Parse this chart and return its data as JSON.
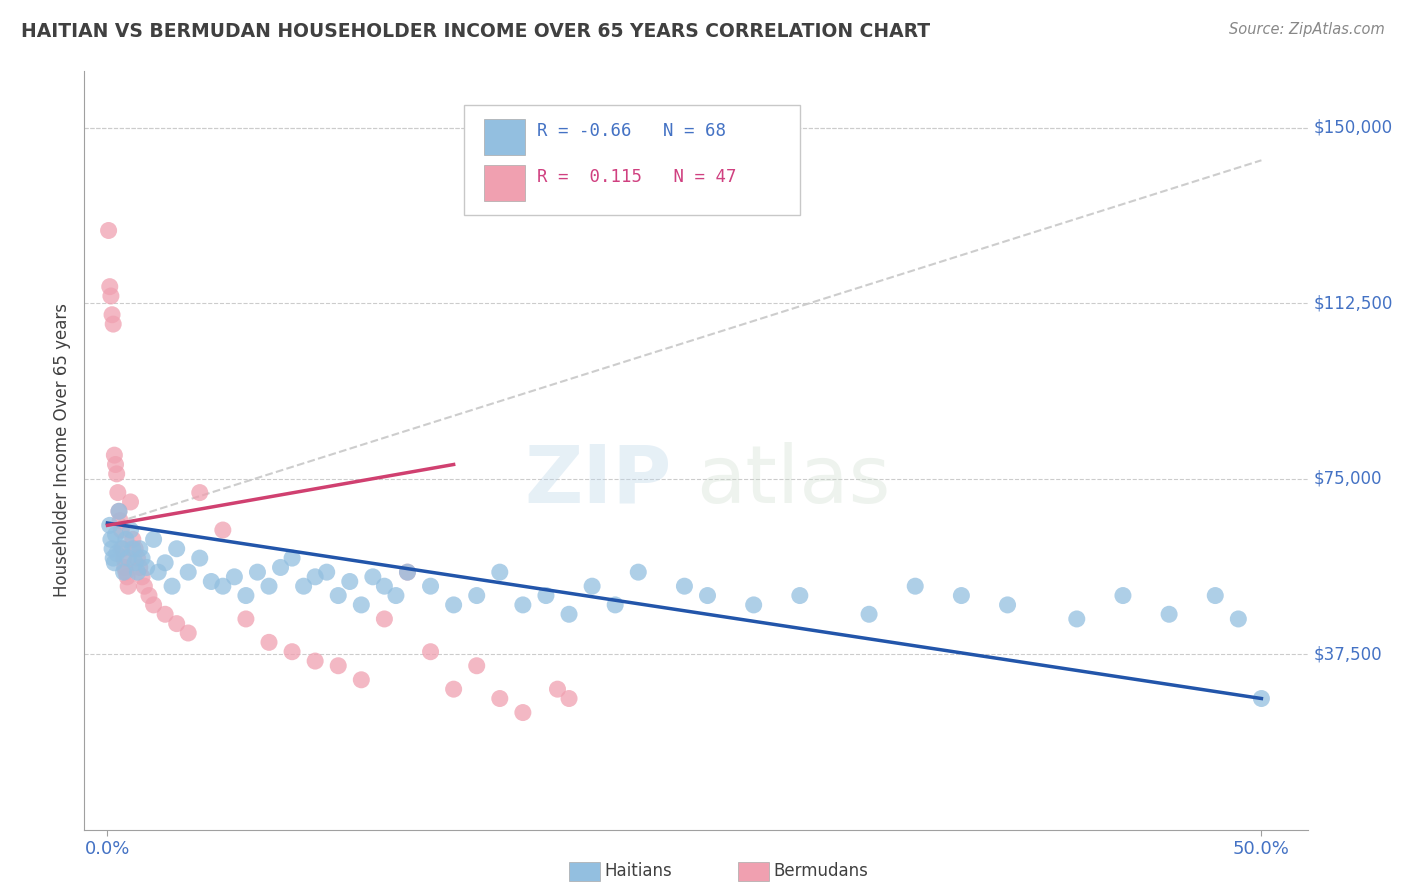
{
  "title": "HAITIAN VS BERMUDAN HOUSEHOLDER INCOME OVER 65 YEARS CORRELATION CHART",
  "source": "Source: ZipAtlas.com",
  "xlabel_ticks": [
    "0.0%",
    "50.0%"
  ],
  "xlabel_tick_vals": [
    0.0,
    50.0
  ],
  "ylabel_ticks": [
    "$37,500",
    "$75,000",
    "$112,500",
    "$150,000"
  ],
  "ylabel_tick_vals": [
    37500,
    75000,
    112500,
    150000
  ],
  "ylim": [
    0,
    162000
  ],
  "xlim": [
    -1.0,
    52
  ],
  "haitian_R": -0.66,
  "haitian_N": 68,
  "bermudan_R": 0.115,
  "bermudan_N": 47,
  "blue_color": "#93bfe0",
  "pink_color": "#f0a0b0",
  "blue_line_color": "#2255aa",
  "pink_line_color": "#d04070",
  "gray_dash_color": "#c8c8c8",
  "title_color": "#404040",
  "axis_label_color": "#4472c4",
  "ylabel_label": "Householder Income Over 65 years",
  "legend_blue_label": "Haitians",
  "legend_pink_label": "Bermudans",
  "watermark_zip": "ZIP",
  "watermark_atlas": "atlas",
  "haitian_x": [
    0.1,
    0.15,
    0.2,
    0.25,
    0.3,
    0.35,
    0.4,
    0.5,
    0.6,
    0.7,
    0.8,
    0.9,
    1.0,
    1.1,
    1.2,
    1.3,
    1.4,
    1.5,
    1.7,
    2.0,
    2.2,
    2.5,
    2.8,
    3.0,
    3.5,
    4.0,
    4.5,
    5.0,
    5.5,
    6.0,
    6.5,
    7.0,
    7.5,
    8.0,
    8.5,
    9.0,
    9.5,
    10.0,
    10.5,
    11.0,
    11.5,
    12.0,
    12.5,
    13.0,
    14.0,
    15.0,
    16.0,
    17.0,
    18.0,
    19.0,
    20.0,
    21.0,
    22.0,
    23.0,
    25.0,
    26.0,
    28.0,
    30.0,
    33.0,
    35.0,
    37.0,
    39.0,
    42.0,
    44.0,
    46.0,
    48.0,
    49.0,
    50.0
  ],
  "haitian_y": [
    65000,
    62000,
    60000,
    58000,
    57000,
    63000,
    59000,
    68000,
    60000,
    55000,
    62000,
    58000,
    64000,
    60000,
    57000,
    55000,
    60000,
    58000,
    56000,
    62000,
    55000,
    57000,
    52000,
    60000,
    55000,
    58000,
    53000,
    52000,
    54000,
    50000,
    55000,
    52000,
    56000,
    58000,
    52000,
    54000,
    55000,
    50000,
    53000,
    48000,
    54000,
    52000,
    50000,
    55000,
    52000,
    48000,
    50000,
    55000,
    48000,
    50000,
    46000,
    52000,
    48000,
    55000,
    52000,
    50000,
    48000,
    50000,
    46000,
    52000,
    50000,
    48000,
    45000,
    50000,
    46000,
    50000,
    45000,
    28000
  ],
  "bermudan_x": [
    0.05,
    0.1,
    0.15,
    0.2,
    0.25,
    0.3,
    0.35,
    0.4,
    0.45,
    0.5,
    0.55,
    0.6,
    0.65,
    0.7,
    0.75,
    0.8,
    0.85,
    0.9,
    1.0,
    1.1,
    1.2,
    1.3,
    1.4,
    1.5,
    1.6,
    1.8,
    2.0,
    2.5,
    3.0,
    3.5,
    4.0,
    5.0,
    6.0,
    7.0,
    8.0,
    9.0,
    10.0,
    11.0,
    12.0,
    13.0,
    14.0,
    15.0,
    16.0,
    17.0,
    18.0,
    19.5,
    20.0
  ],
  "bermudan_y": [
    128000,
    116000,
    114000,
    110000,
    108000,
    80000,
    78000,
    76000,
    72000,
    68000,
    66000,
    64000,
    60000,
    58000,
    56000,
    55000,
    54000,
    52000,
    70000,
    62000,
    60000,
    58000,
    56000,
    54000,
    52000,
    50000,
    48000,
    46000,
    44000,
    42000,
    72000,
    64000,
    45000,
    40000,
    38000,
    36000,
    35000,
    32000,
    45000,
    55000,
    38000,
    30000,
    35000,
    28000,
    25000,
    30000,
    28000
  ],
  "blue_line_x0": 0,
  "blue_line_y0": 65500,
  "blue_line_x1": 50,
  "blue_line_y1": 28000,
  "pink_line_x0": 0,
  "pink_line_y0": 65000,
  "pink_line_x1": 15,
  "pink_line_y1": 78000,
  "gray_dash_x0": 0,
  "gray_dash_y0": 65000,
  "gray_dash_x1": 50,
  "gray_dash_y1": 143000
}
